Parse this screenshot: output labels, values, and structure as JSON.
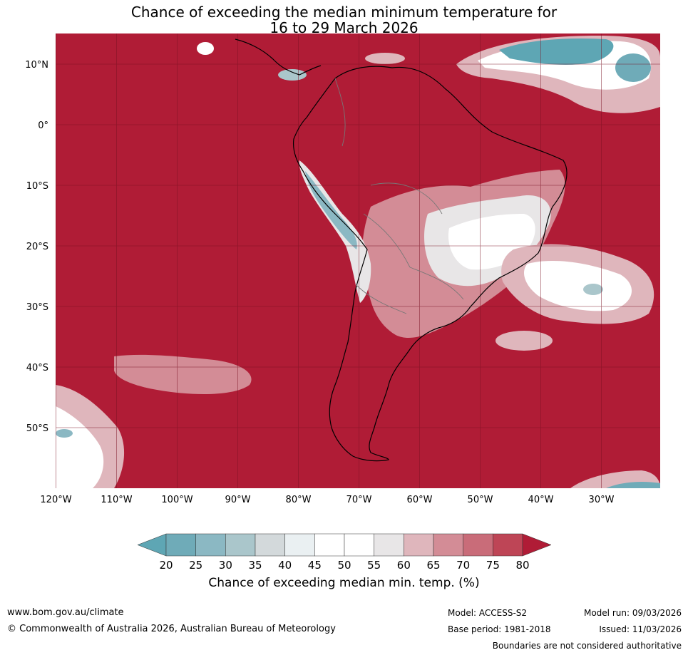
{
  "title": {
    "line1": "Chance of exceeding the median minimum temperature for",
    "line2": "16 to 29 March 2026"
  },
  "map": {
    "lat_labels": [
      "10°N",
      "0°",
      "10°S",
      "20°S",
      "30°S",
      "40°S",
      "50°S"
    ],
    "lon_labels": [
      "120°W",
      "110°W",
      "100°W",
      "90°W",
      "80°W",
      "70°W",
      "60°W",
      "50°W",
      "40°W",
      "30°W"
    ],
    "background_color": "#b01c36"
  },
  "colorbar": {
    "ticks": [
      "20",
      "25",
      "30",
      "35",
      "40",
      "45",
      "50",
      "55",
      "60",
      "65",
      "70",
      "75",
      "80"
    ],
    "colors": [
      "#5ea6b4",
      "#6fabb8",
      "#8bb8c3",
      "#aac6cb",
      "#d3d9db",
      "#eaf0f2",
      "#ffffff",
      "#ffffff",
      "#e8e6e7",
      "#dfb6bc",
      "#d38c96",
      "#c96c79",
      "#be4556",
      "#b01c36"
    ],
    "label": "Chance of exceeding median min. temp. (%)"
  },
  "footer": {
    "url": "www.bom.gov.au/climate",
    "copyright": "© Commonwealth of Australia 2026, Australian Bureau of Meteorology",
    "model": "Model: ACCESS-S2",
    "base_period": "Base period: 1981-2018",
    "model_run": "Model run: 09/03/2026",
    "issued": "Issued: 11/03/2026",
    "disclaimer": "Boundaries are not considered authoritative"
  }
}
